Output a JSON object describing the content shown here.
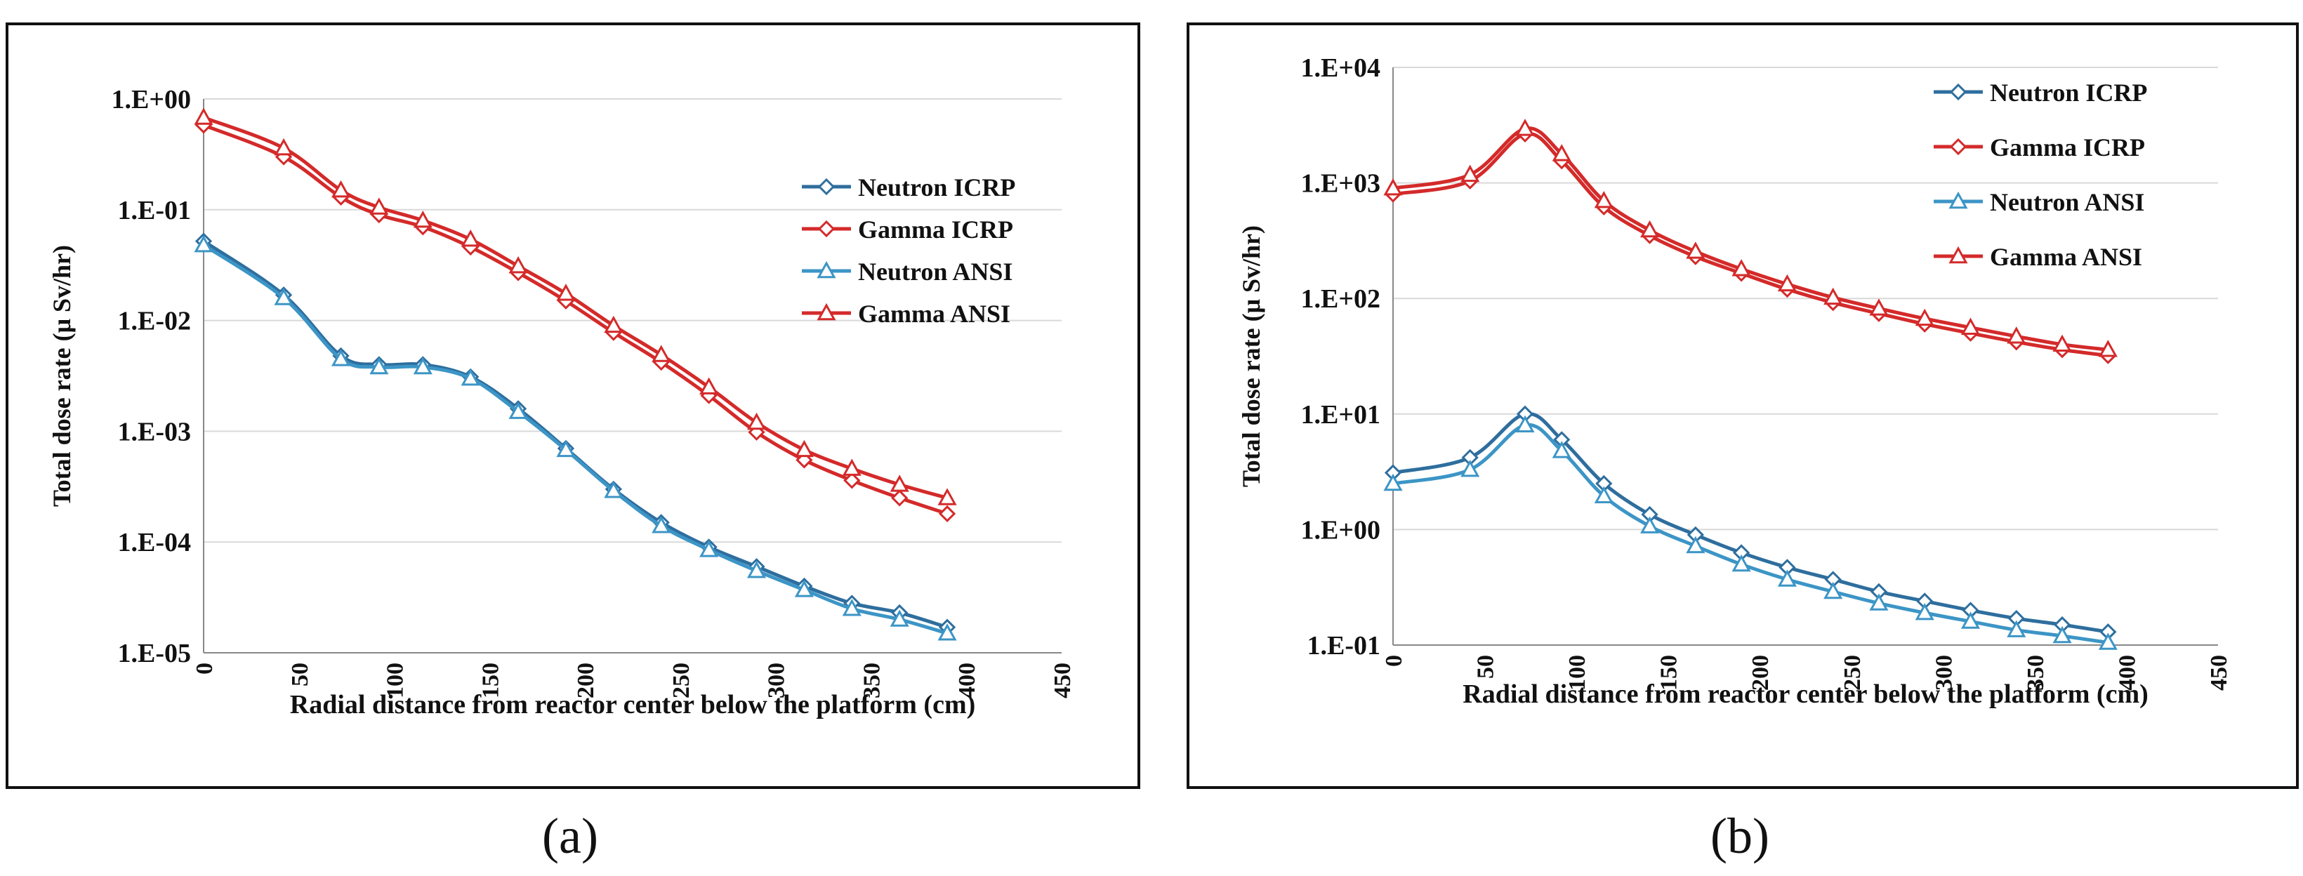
{
  "captions": {
    "a": "(a)",
    "b": "(b)"
  },
  "colors": {
    "neutron": "#2E6E9E",
    "gamma": "#D42A2A",
    "neutron_ansi": "#3C95C6",
    "grid": "#d9d9d9"
  },
  "chart_data": [
    {
      "id": "a",
      "type": "line",
      "title": "",
      "xlabel": "Radial distance from reactor center below the platform (cm)",
      "ylabel": "Total dose rate (μ Sv/hr)",
      "yscale": "log",
      "xlim": [
        0,
        450
      ],
      "ylim": [
        1e-05,
        1
      ],
      "xticks": [
        0,
        50,
        100,
        150,
        200,
        250,
        300,
        350,
        400,
        450
      ],
      "yticks": [
        {
          "v": 1,
          "label": "1.E+00"
        },
        {
          "v": 0.1,
          "label": "1.E-01"
        },
        {
          "v": 0.01,
          "label": "1.E-02"
        },
        {
          "v": 0.001,
          "label": "1.E-03"
        },
        {
          "v": 0.0001,
          "label": "1.E-04"
        },
        {
          "v": 1e-05,
          "label": "1.E-05"
        }
      ],
      "legend_position": "right",
      "x": [
        0,
        42,
        72,
        92,
        115,
        140,
        165,
        190,
        215,
        240,
        265,
        290,
        315,
        340,
        365,
        390
      ],
      "series": [
        {
          "name": "Neutron ICRP",
          "marker": "diamond",
          "color": "#2E6E9E",
          "values": [
            0.052,
            0.017,
            0.0048,
            0.004,
            0.004,
            0.0031,
            0.0016,
            0.0007,
            0.0003,
            0.00015,
            9e-05,
            6e-05,
            4e-05,
            2.8e-05,
            2.3e-05,
            1.7e-05
          ]
        },
        {
          "name": "Gamma ICRP",
          "marker": "diamond",
          "color": "#D42A2A",
          "values": [
            0.58,
            0.3,
            0.13,
            0.09,
            0.07,
            0.046,
            0.027,
            0.015,
            0.0078,
            0.0042,
            0.0021,
            0.00098,
            0.00055,
            0.00036,
            0.00025,
            0.00018
          ]
        },
        {
          "name": "Neutron ANSI",
          "marker": "triangle",
          "color": "#3C95C6",
          "values": [
            0.048,
            0.016,
            0.0045,
            0.0038,
            0.0038,
            0.003,
            0.0015,
            0.00068,
            0.00029,
            0.00014,
            8.5e-05,
            5.5e-05,
            3.7e-05,
            2.5e-05,
            2e-05,
            1.5e-05
          ]
        },
        {
          "name": "Gamma ANSI",
          "marker": "triangle",
          "color": "#D42A2A",
          "values": [
            0.68,
            0.36,
            0.15,
            0.105,
            0.08,
            0.054,
            0.031,
            0.0175,
            0.009,
            0.0049,
            0.0025,
            0.0012,
            0.00068,
            0.00046,
            0.00033,
            0.00025
          ]
        }
      ]
    },
    {
      "id": "b",
      "type": "line",
      "title": "",
      "xlabel": "Radial distance from reactor center below the platform (cm)",
      "ylabel": "Total dose rate (μ Sv/hr)",
      "yscale": "log",
      "xlim": [
        0,
        450
      ],
      "ylim": [
        0.1,
        10000
      ],
      "xticks": [
        0,
        50,
        100,
        150,
        200,
        250,
        300,
        350,
        400,
        450
      ],
      "yticks": [
        {
          "v": 10000,
          "label": "1.E+04"
        },
        {
          "v": 1000,
          "label": "1.E+03"
        },
        {
          "v": 100,
          "label": "1.E+02"
        },
        {
          "v": 10,
          "label": "1.E+01"
        },
        {
          "v": 1,
          "label": "1.E+00"
        },
        {
          "v": 0.1,
          "label": "1.E-01"
        }
      ],
      "legend_position": "top-right",
      "x": [
        0,
        42,
        72,
        92,
        115,
        140,
        165,
        190,
        215,
        240,
        265,
        290,
        315,
        340,
        365,
        390
      ],
      "series": [
        {
          "name": "Neutron ICRP",
          "marker": "diamond",
          "color": "#2E6E9E",
          "values": [
            3.1,
            4.2,
            10.0,
            6.0,
            2.5,
            1.35,
            0.9,
            0.63,
            0.47,
            0.37,
            0.29,
            0.24,
            0.2,
            0.17,
            0.15,
            0.13
          ]
        },
        {
          "name": "Gamma ICRP",
          "marker": "diamond",
          "color": "#D42A2A",
          "values": [
            800,
            1040,
            2650,
            1550,
            620,
            350,
            230,
            165,
            120,
            92,
            74,
            60,
            50,
            42,
            36,
            32
          ]
        },
        {
          "name": "Neutron ANSI",
          "marker": "triangle",
          "color": "#3C95C6",
          "values": [
            2.5,
            3.3,
            8.0,
            4.8,
            1.95,
            1.07,
            0.72,
            0.5,
            0.37,
            0.29,
            0.23,
            0.19,
            0.16,
            0.135,
            0.12,
            0.105
          ]
        },
        {
          "name": "Gamma ANSI",
          "marker": "triangle",
          "color": "#D42A2A",
          "values": [
            900,
            1180,
            2950,
            1780,
            700,
            390,
            255,
            180,
            133,
            102,
            82,
            67,
            56,
            47,
            40,
            36
          ]
        }
      ]
    }
  ]
}
